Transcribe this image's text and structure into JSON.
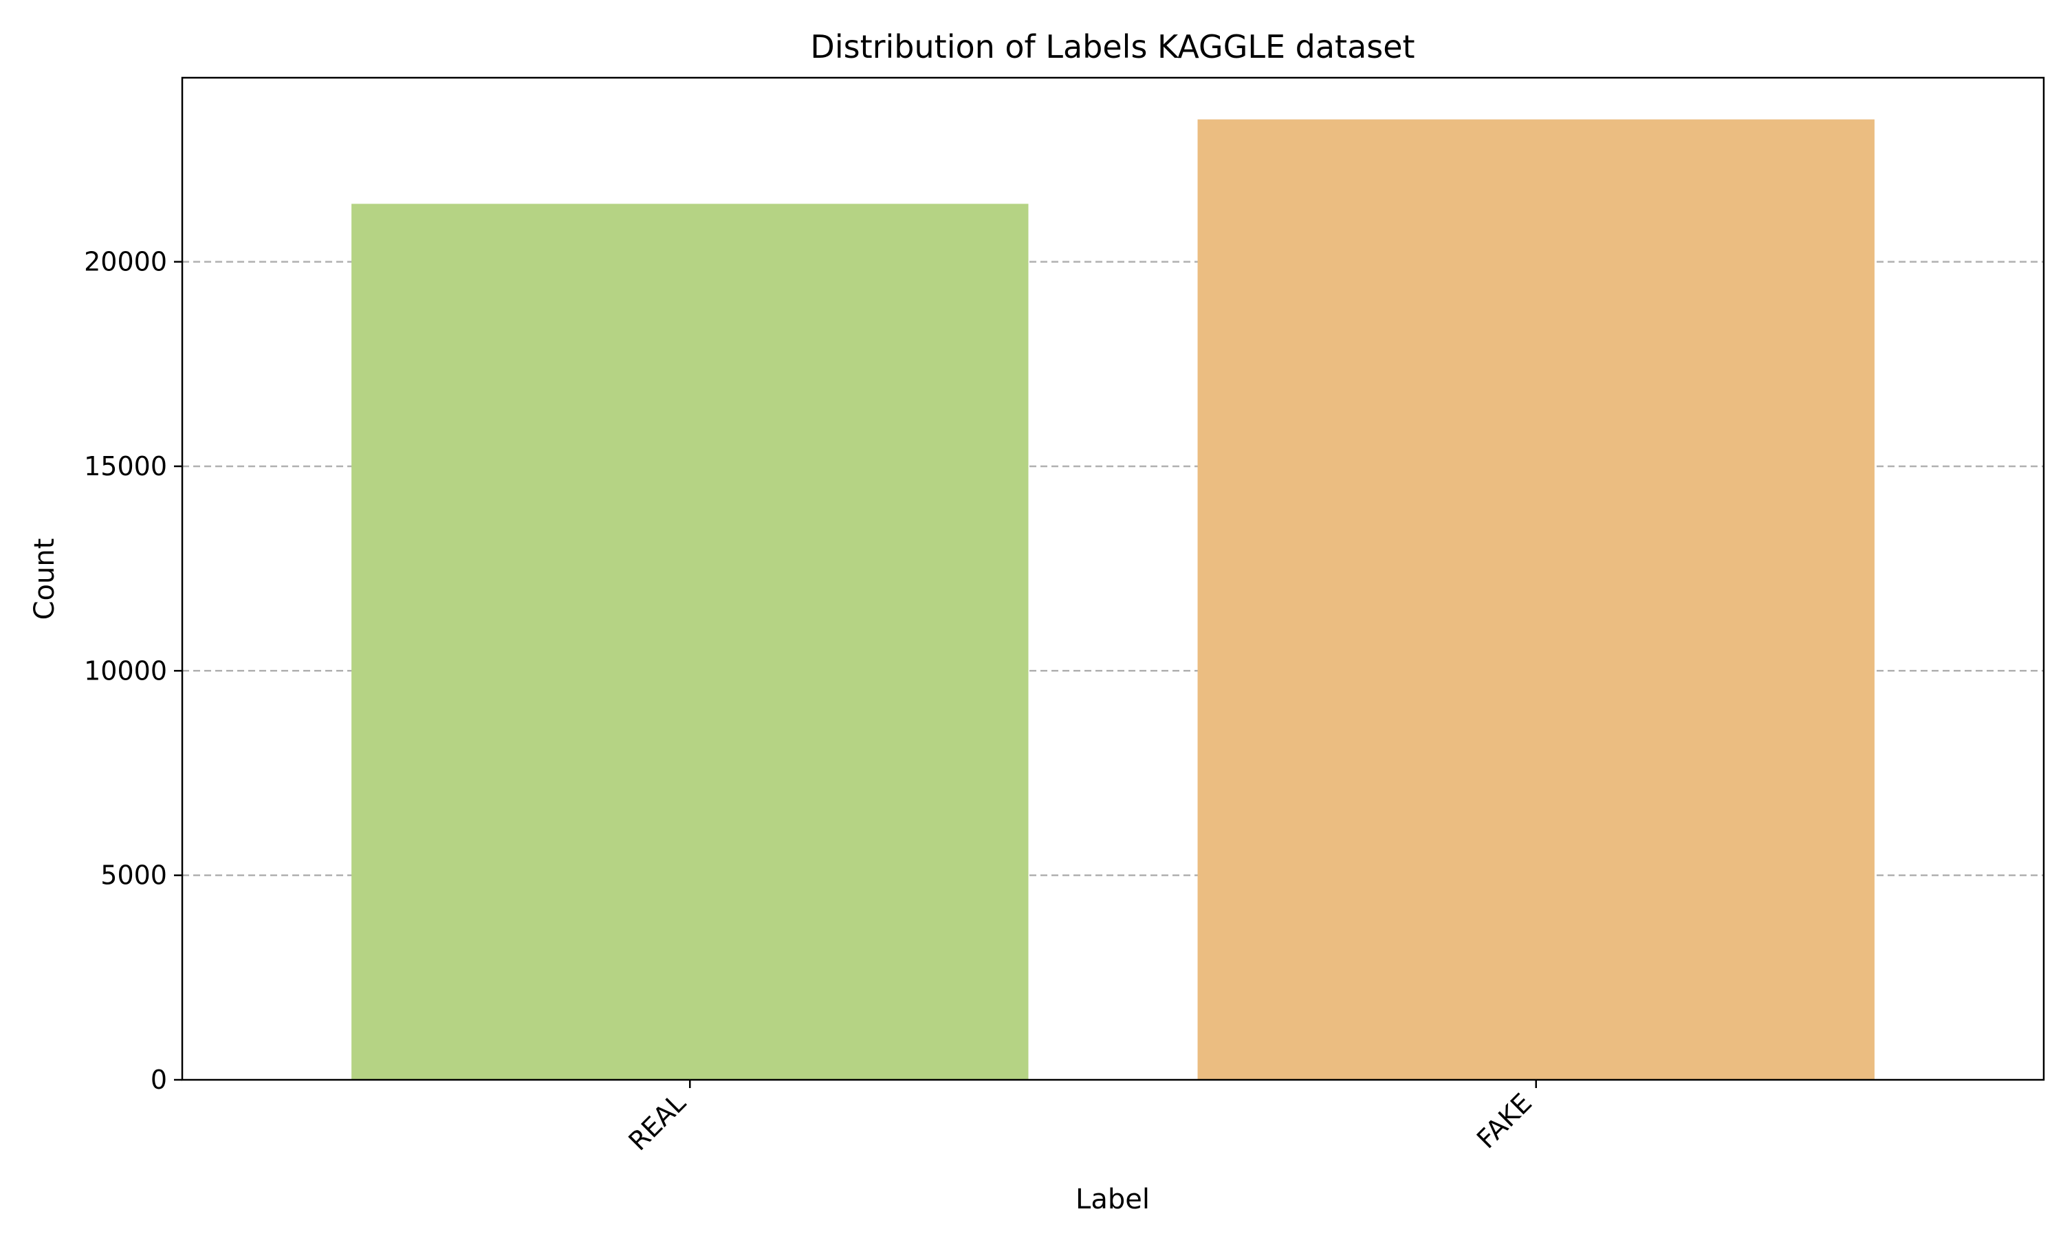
{
  "chart_data": {
    "type": "bar",
    "title": "Distribution of Labels KAGGLE dataset",
    "xlabel": "Label",
    "ylabel": "Count",
    "categories": [
      "REAL",
      "FAKE"
    ],
    "values": [
      21417,
      23481
    ],
    "colors": [
      "#b5d384",
      "#ebbd81"
    ],
    "ylim": [
      0,
      24500
    ],
    "yticks": [
      0,
      5000,
      10000,
      15000,
      20000
    ],
    "ytick_labels": [
      "0",
      "5000",
      "10000",
      "15000",
      "20000"
    ],
    "grid": "y-axis dashed",
    "x_tick_rotation": "45 degrees",
    "legend": "none"
  }
}
